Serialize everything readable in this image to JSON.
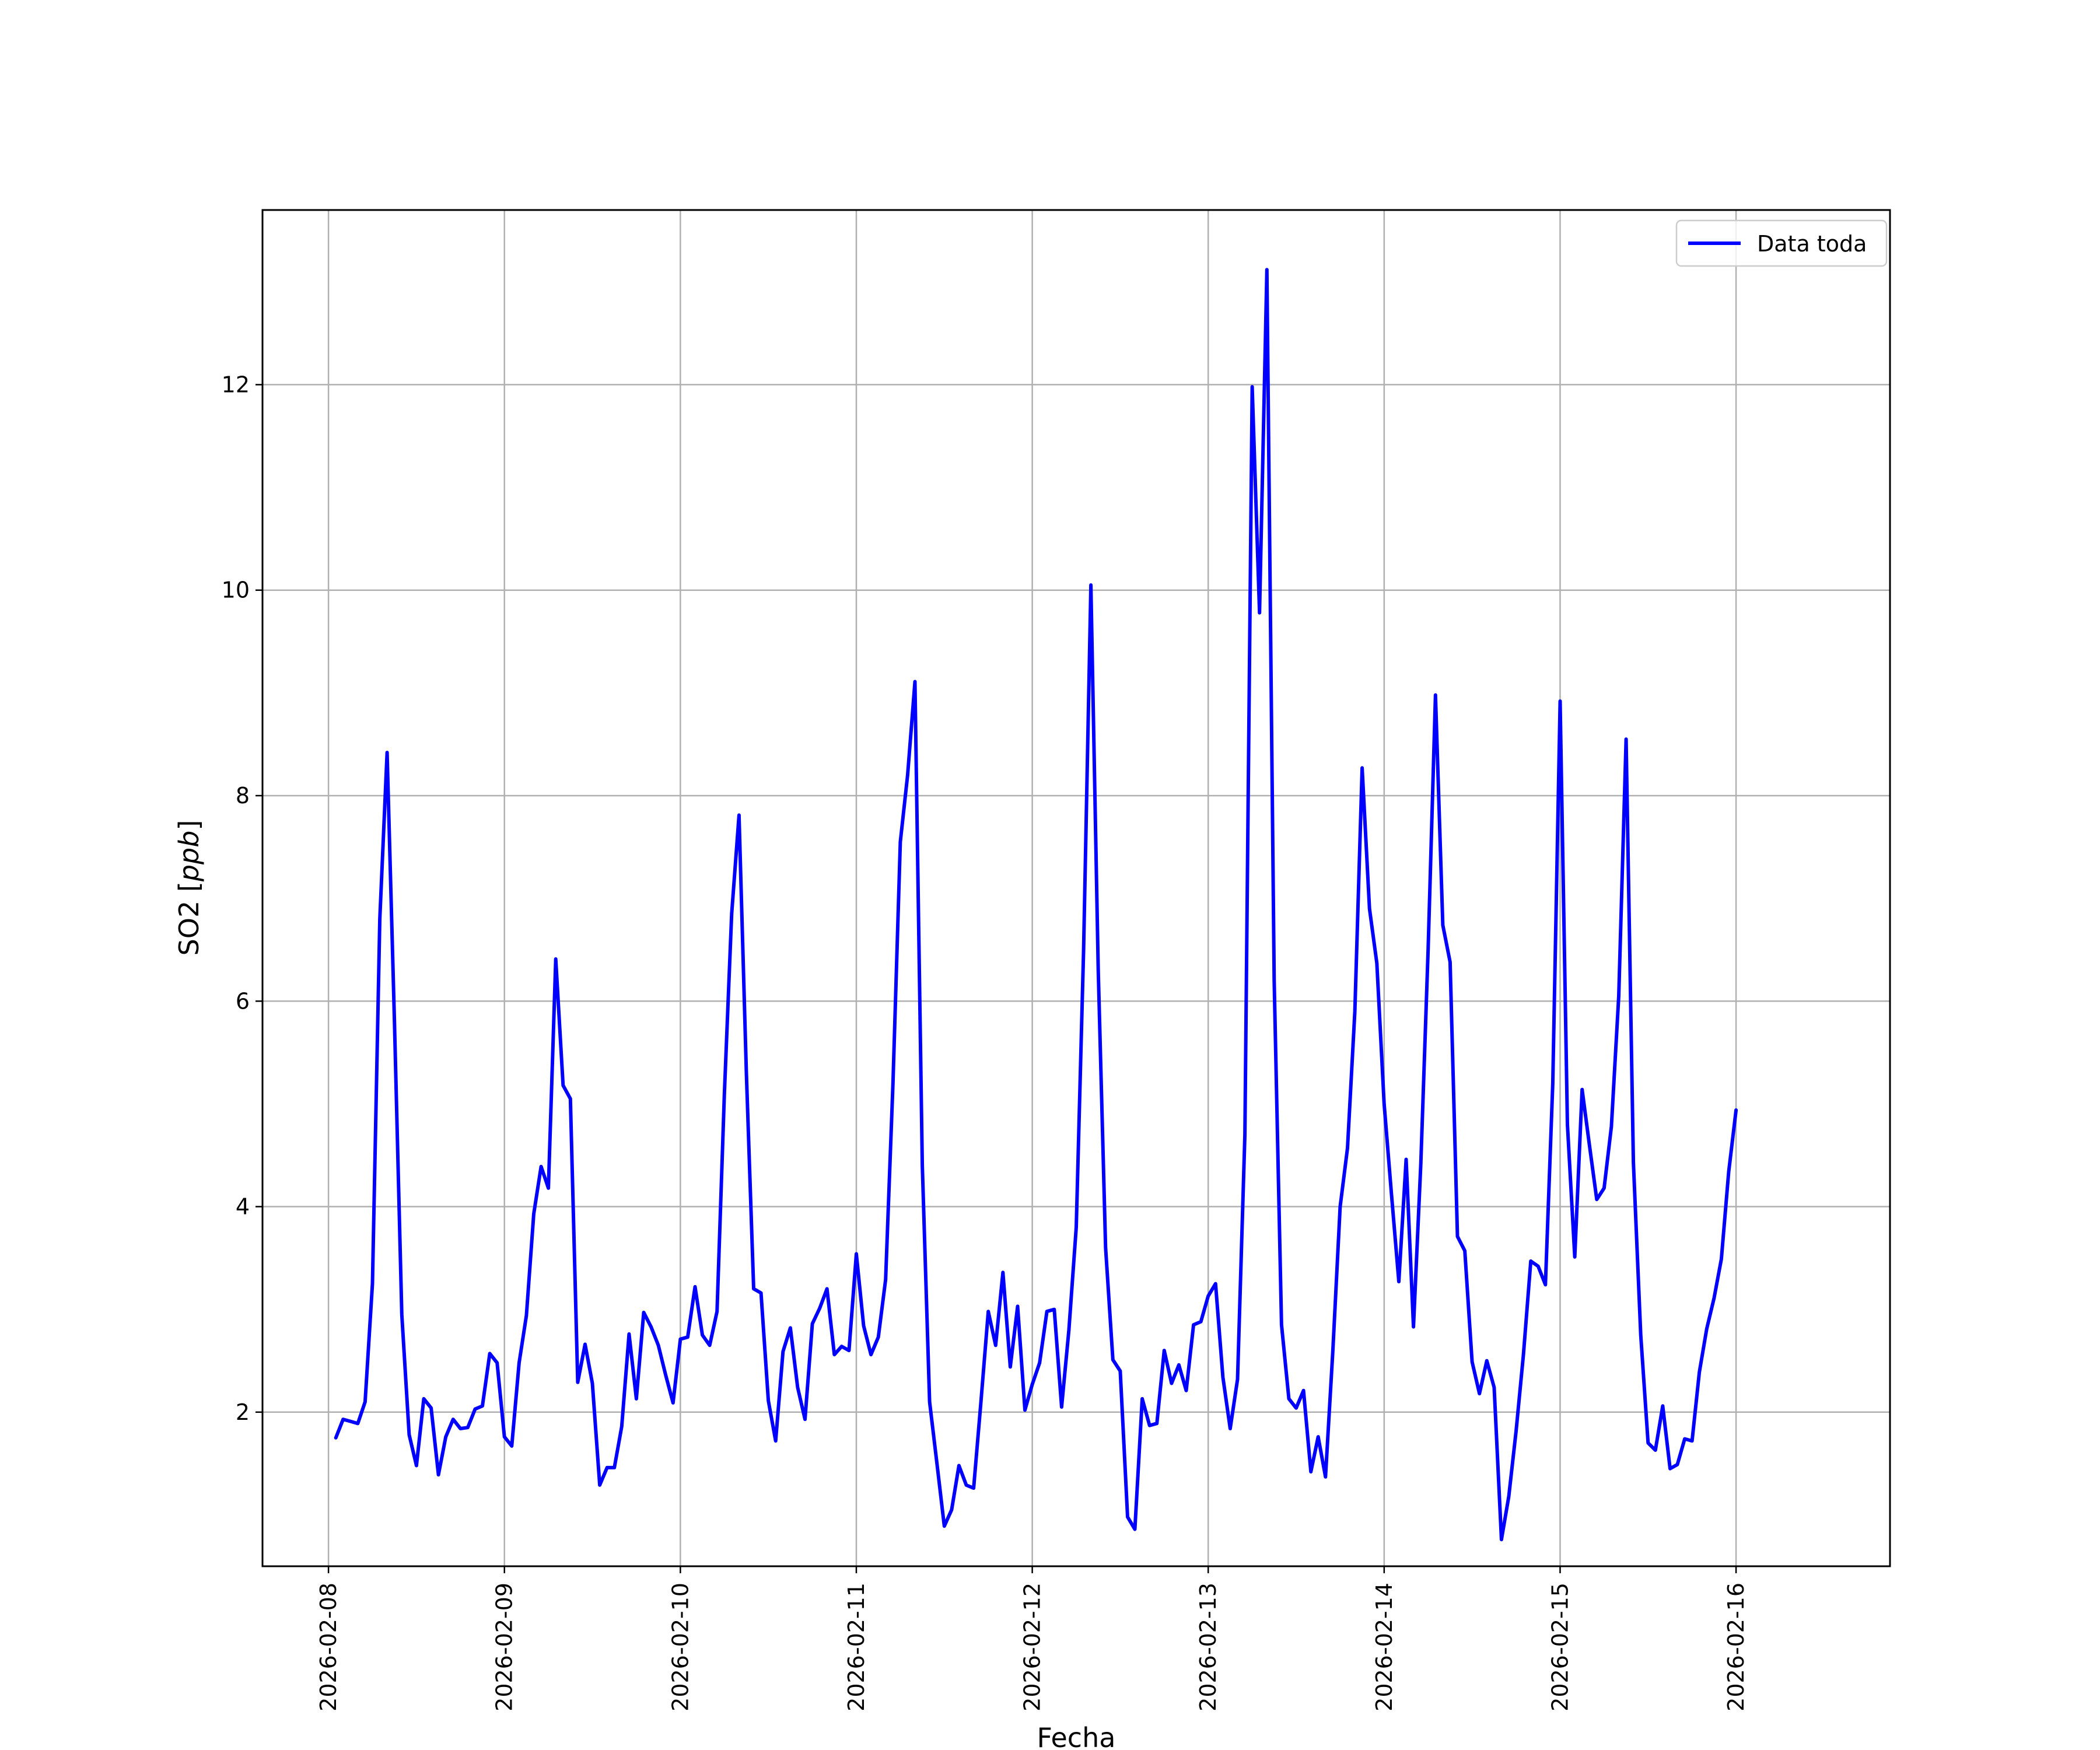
{
  "chart_data": {
    "type": "line",
    "xlabel": "Fecha",
    "ylabel": "SO2 [ppb]",
    "ylabel_parts": {
      "prefix": "SO2 [",
      "unit": "ppb",
      "suffix": "]"
    },
    "x_ticks": [
      "2026-02-08",
      "2026-02-09",
      "2026-02-10",
      "2026-02-11",
      "2026-02-12",
      "2026-02-13",
      "2026-02-14",
      "2026-02-15",
      "2026-02-16"
    ],
    "y_ticks": [
      2,
      4,
      6,
      8,
      10,
      12
    ],
    "xlim": [
      "2026-02-07T15:00",
      "2026-02-16T21:00"
    ],
    "ylim": [
      0.5,
      13.7
    ],
    "grid": true,
    "legend_position": "top-right",
    "series": [
      {
        "name": "Data toda",
        "color": "#0000ff",
        "x_start": "2026-02-08T01:00",
        "x_step_hours": 1,
        "values": [
          1.75,
          1.93,
          1.91,
          1.89,
          2.1,
          3.25,
          6.8,
          8.42,
          5.8,
          2.95,
          1.78,
          1.48,
          2.13,
          2.04,
          1.39,
          1.76,
          1.93,
          1.84,
          1.85,
          2.03,
          2.06,
          2.57,
          2.48,
          1.76,
          1.67,
          2.48,
          2.94,
          3.93,
          4.39,
          4.18,
          6.41,
          5.18,
          5.05,
          2.29,
          2.66,
          2.28,
          1.29,
          1.46,
          1.46,
          1.86,
          2.76,
          2.13,
          2.97,
          2.83,
          2.65,
          2.36,
          2.09,
          2.71,
          2.73,
          3.22,
          2.75,
          2.65,
          2.98,
          5.1,
          6.85,
          7.81,
          5.3,
          3.2,
          3.16,
          2.11,
          1.72,
          2.59,
          2.82,
          2.24,
          1.93,
          2.86,
          3.01,
          3.2,
          2.56,
          2.64,
          2.6,
          3.54,
          2.84,
          2.56,
          2.73,
          3.29,
          5.2,
          7.55,
          8.2,
          9.11,
          4.4,
          2.1,
          1.5,
          0.89,
          1.05,
          1.48,
          1.29,
          1.26,
          2.1,
          2.98,
          2.65,
          3.36,
          2.44,
          3.03,
          2.02,
          2.27,
          2.48,
          2.98,
          3.0,
          2.05,
          2.8,
          3.8,
          6.5,
          10.05,
          6.3,
          3.6,
          2.51,
          2.4,
          0.98,
          0.86,
          2.13,
          1.87,
          1.89,
          2.6,
          2.28,
          2.46,
          2.21,
          2.85,
          2.88,
          3.13,
          3.25,
          2.34,
          1.84,
          2.32,
          4.7,
          11.98,
          9.78,
          13.12,
          6.2,
          2.85,
          2.13,
          2.04,
          2.21,
          1.42,
          1.76,
          1.37,
          2.6,
          4.0,
          4.57,
          5.9,
          8.27,
          6.9,
          6.37,
          5.0,
          4.12,
          3.27,
          4.46,
          2.83,
          4.42,
          6.5,
          8.98,
          6.74,
          6.38,
          3.71,
          3.57,
          2.49,
          2.18,
          2.5,
          2.24,
          0.76,
          1.18,
          1.82,
          2.56,
          3.47,
          3.42,
          3.24,
          5.2,
          8.92,
          4.8,
          3.51,
          5.14,
          4.6,
          4.07,
          4.18,
          4.78,
          6.05,
          8.55,
          4.43,
          2.75,
          1.7,
          1.63,
          2.06,
          1.45,
          1.49,
          1.74,
          1.72,
          2.39,
          2.81,
          3.11,
          3.49,
          4.34,
          4.94
        ]
      }
    ]
  }
}
